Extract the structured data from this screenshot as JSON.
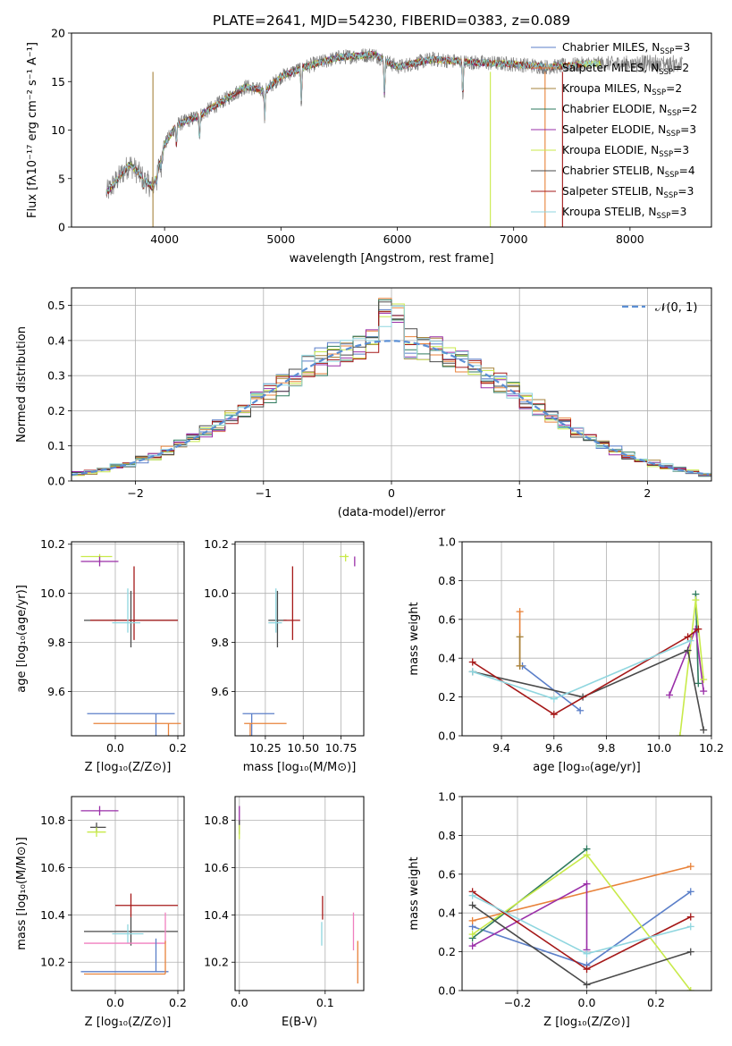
{
  "title": "PLATE=2641, MJD=54230, FIBERID=0383, z=0.089",
  "chart_data": [
    {
      "type": "line",
      "id": "spectrum",
      "xlabel": "wavelength [Angstrom, rest frame]",
      "ylabel": "Flux [fλ10⁻¹⁷ erg cm⁻² s⁻¹ A⁻¹]",
      "xlim": [
        3200,
        8700
      ],
      "ylim": [
        0,
        20
      ],
      "xticks": [
        "4000",
        "5000",
        "6000",
        "7000",
        "8000"
      ],
      "xtick_values": [
        4000,
        5000,
        6000,
        7000,
        8000
      ],
      "yticks": [
        "0",
        "5",
        "10",
        "15",
        "20"
      ],
      "ytick_values": [
        0,
        5,
        10,
        15,
        20
      ],
      "continuum": {
        "x": [
          3500,
          3700,
          3900,
          4000,
          4100,
          4300,
          4500,
          4700,
          4860,
          5000,
          5200,
          5500,
          5800,
          6000,
          6300,
          6600,
          7000,
          7300,
          7600,
          8000,
          8400
        ],
        "y": [
          3.5,
          6.5,
          4.0,
          8.5,
          10.5,
          11.5,
          13.0,
          14.5,
          14.0,
          15.5,
          16.5,
          17.5,
          17.8,
          16.5,
          17.3,
          17.0,
          16.8,
          16.5,
          16.8,
          16.9,
          16.8
        ]
      },
      "legend_position": "upper-right",
      "legend": [
        {
          "label": "Chabrier MILES, N",
          "sub": "SSP",
          "suffix": "=3",
          "color": "#5b7fc9"
        },
        {
          "label": "Salpeter MILES, N",
          "sub": "SSP",
          "suffix": "=2",
          "color": "#e8823a"
        },
        {
          "label": "Kroupa MILES, N",
          "sub": "SSP",
          "suffix": "=2",
          "color": "#a6833c"
        },
        {
          "label": "Chabrier ELODIE, N",
          "sub": "SSP",
          "suffix": "=2",
          "color": "#2e7a5e"
        },
        {
          "label": "Salpeter ELODIE, N",
          "sub": "SSP",
          "suffix": "=3",
          "color": "#9a2fa8"
        },
        {
          "label": "Kroupa ELODIE, N",
          "sub": "SSP",
          "suffix": "=3",
          "color": "#c8ea4a"
        },
        {
          "label": "Chabrier STELIB, N",
          "sub": "SSP",
          "suffix": "=4",
          "color": "#4a4a4a"
        },
        {
          "label": "Salpeter STELIB, N",
          "sub": "SSP",
          "suffix": "=3",
          "color": "#a51818"
        },
        {
          "label": "Kroupa STELIB, N",
          "sub": "SSP",
          "suffix": "=3",
          "color": "#8fd6df"
        }
      ]
    },
    {
      "type": "line",
      "id": "residuals",
      "xlabel": "(data-model)/error",
      "ylabel": "Normed distribution",
      "xlim": [
        -2.5,
        2.5
      ],
      "ylim": [
        0,
        0.55
      ],
      "xticks": [
        "−2",
        "−1",
        "0",
        "1",
        "2"
      ],
      "xtick_values": [
        -2,
        -1,
        0,
        1,
        2
      ],
      "yticks": [
        "0.0",
        "0.1",
        "0.2",
        "0.3",
        "0.4",
        "0.5"
      ],
      "ytick_values": [
        0,
        0.1,
        0.2,
        0.3,
        0.4,
        0.5
      ],
      "grid": true,
      "legend_position": "upper-right",
      "legend": [
        {
          "label": "𝒩(0, 1)",
          "color": "#5b8fd4",
          "dashed": true
        }
      ]
    },
    {
      "type": "scatter",
      "id": "age-vs-Z",
      "xlabel": "Z [log₁₀(Z/Z⊙)]",
      "ylabel": "age  [log₁₀(age/yr)]",
      "xlim": [
        -0.14,
        0.22
      ],
      "ylim": [
        9.42,
        10.21
      ],
      "xticks": [
        "0.0",
        "0.2"
      ],
      "xtick_values": [
        0.0,
        0.2
      ],
      "yticks": [
        "9.6",
        "9.8",
        "10.0",
        "10.2"
      ],
      "ytick_values": [
        9.6,
        9.8,
        10.0,
        10.2
      ],
      "grid": true,
      "points": [
        {
          "x": -0.05,
          "y": 10.15,
          "xerr": [
            0.06,
            0.04
          ],
          "yerr": [
            0.02,
            0.01
          ],
          "color": "#c8ea4a"
        },
        {
          "x": -0.05,
          "y": 10.13,
          "xerr": [
            0.06,
            0.06
          ],
          "yerr": [
            0.02,
            0.02
          ],
          "color": "#9a2fa8"
        },
        {
          "x": 0.05,
          "y": 9.89,
          "xerr": [
            0.15,
            0.15
          ],
          "yerr": [
            0.11,
            0.12
          ],
          "color": "#4a4a4a"
        },
        {
          "x": 0.06,
          "y": 9.89,
          "xerr": [
            0.14,
            0.14
          ],
          "yerr": [
            0.08,
            0.22
          ],
          "color": "#a51818"
        },
        {
          "x": 0.04,
          "y": 9.88,
          "xerr": [
            0.05,
            0.04
          ],
          "yerr": [
            0.04,
            0.14
          ],
          "color": "#8fd6df"
        },
        {
          "x": 0.13,
          "y": 9.51,
          "xerr": [
            0.22,
            0.06
          ],
          "yerr": [
            0.32,
            0.0
          ],
          "color": "#5b7fc9"
        },
        {
          "x": 0.17,
          "y": 9.47,
          "xerr": [
            0.24,
            0.04
          ],
          "yerr": [
            0.36,
            0.0
          ],
          "color": "#e8823a"
        }
      ]
    },
    {
      "type": "scatter",
      "id": "age-vs-mass",
      "xlabel": "mass [log₁₀(M/M⊙)]",
      "ylabel": "",
      "xlim": [
        10.05,
        10.9
      ],
      "ylim": [
        9.42,
        10.21
      ],
      "xticks": [
        "10.25",
        "10.50",
        "10.75"
      ],
      "xtick_values": [
        10.25,
        10.5,
        10.75
      ],
      "yticks": [
        "9.6",
        "9.8",
        "10.0",
        "10.2"
      ],
      "ytick_values": [
        9.6,
        9.8,
        10.0,
        10.2
      ],
      "grid": true,
      "points": [
        {
          "x": 10.78,
          "y": 10.15,
          "xerr": [
            0.04,
            0.02
          ],
          "yerr": [
            0.02,
            0.01
          ],
          "color": "#c8ea4a"
        },
        {
          "x": 10.84,
          "y": 10.13,
          "xerr": [
            0.0,
            0.0
          ],
          "yerr": [
            0.02,
            0.02
          ],
          "color": "#9a2fa8"
        },
        {
          "x": 10.33,
          "y": 9.89,
          "xerr": [
            0.06,
            0.06
          ],
          "yerr": [
            0.11,
            0.12
          ],
          "color": "#4a4a4a"
        },
        {
          "x": 10.43,
          "y": 9.89,
          "xerr": [
            0.06,
            0.05
          ],
          "yerr": [
            0.08,
            0.22
          ],
          "color": "#a51818"
        },
        {
          "x": 10.32,
          "y": 9.88,
          "xerr": [
            0.05,
            0.04
          ],
          "yerr": [
            0.04,
            0.14
          ],
          "color": "#8fd6df"
        },
        {
          "x": 10.16,
          "y": 9.51,
          "xerr": [
            0.06,
            0.15
          ],
          "yerr": [
            0.32,
            0.0
          ],
          "color": "#5b7fc9"
        },
        {
          "x": 10.15,
          "y": 9.47,
          "xerr": [
            0.04,
            0.24
          ],
          "yerr": [
            0.36,
            0.0
          ],
          "color": "#e8823a"
        }
      ]
    },
    {
      "type": "line",
      "id": "massweight-vs-age",
      "xlabel": "age  [log₁₀(age/yr)]",
      "ylabel": "mass weight",
      "xlim": [
        9.25,
        10.2
      ],
      "ylim": [
        0,
        1.0
      ],
      "xticks": [
        "9.4",
        "9.6",
        "9.8",
        "10.0",
        "10.2"
      ],
      "xtick_values": [
        9.4,
        9.6,
        9.8,
        10.0,
        10.2
      ],
      "yticks": [
        "0.0",
        "0.2",
        "0.4",
        "0.6",
        "0.8",
        "1.0"
      ],
      "ytick_values": [
        0,
        0.2,
        0.4,
        0.6,
        0.8,
        1.0
      ],
      "grid": true,
      "series": [
        {
          "color": "#5b7fc9",
          "x": [
            9.48,
            9.7
          ],
          "y": [
            0.36,
            0.13
          ]
        },
        {
          "color": "#e8823a",
          "x": [
            9.47,
            9.47
          ],
          "y": [
            0.36,
            0.64
          ]
        },
        {
          "color": "#a6833c",
          "x": [
            9.47,
            9.47
          ],
          "y": [
            0.51,
            0.36
          ]
        },
        {
          "color": "#2e7a5e",
          "x": [
            10.14,
            10.15
          ],
          "y": [
            0.73,
            0.27
          ]
        },
        {
          "color": "#9a2fa8",
          "x": [
            10.04,
            10.14,
            10.17
          ],
          "y": [
            0.21,
            0.55,
            0.23
          ]
        },
        {
          "color": "#c8ea4a",
          "x": [
            10.08,
            10.14,
            10.17
          ],
          "y": [
            0.0,
            0.7,
            0.29
          ]
        },
        {
          "color": "#4a4a4a",
          "x": [
            9.29,
            9.71,
            10.11,
            10.17
          ],
          "y": [
            0.33,
            0.2,
            0.44,
            0.03
          ]
        },
        {
          "color": "#a51818",
          "x": [
            9.29,
            9.6,
            10.11,
            10.15
          ],
          "y": [
            0.38,
            0.11,
            0.51,
            0.55
          ]
        },
        {
          "color": "#8fd6df",
          "x": [
            9.29,
            9.6,
            10.12
          ],
          "y": [
            0.33,
            0.19,
            0.49
          ]
        }
      ]
    },
    {
      "type": "scatter",
      "id": "mass-vs-Z",
      "xlabel": "Z [log₁₀(Z/Z⊙)]",
      "ylabel": "mass [log₁₀(M/M⊙)]",
      "xlim": [
        -0.14,
        0.22
      ],
      "ylim": [
        10.08,
        10.9
      ],
      "xticks": [
        "0.0",
        "0.2"
      ],
      "xtick_values": [
        0.0,
        0.2
      ],
      "yticks": [
        "10.2",
        "10.4",
        "10.6",
        "10.8"
      ],
      "ytick_values": [
        10.2,
        10.4,
        10.6,
        10.8
      ],
      "grid": true,
      "points": [
        {
          "x": -0.05,
          "y": 10.84,
          "xerr": [
            0.06,
            0.06
          ],
          "yerr": [
            0.02,
            0.02
          ],
          "color": "#9a2fa8"
        },
        {
          "x": -0.06,
          "y": 10.77,
          "xerr": [
            0.02,
            0.03
          ],
          "yerr": [
            0.02,
            0.02
          ],
          "color": "#4a4a4a"
        },
        {
          "x": -0.06,
          "y": 10.75,
          "xerr": [
            0.03,
            0.03
          ],
          "yerr": [
            0.02,
            0.02
          ],
          "color": "#c8ea4a"
        },
        {
          "x": 0.05,
          "y": 10.44,
          "xerr": [
            0.05,
            0.15
          ],
          "yerr": [
            0.05,
            0.05
          ],
          "color": "#a51818"
        },
        {
          "x": 0.05,
          "y": 10.33,
          "xerr": [
            0.15,
            0.15
          ],
          "yerr": [
            0.06,
            0.06
          ],
          "color": "#4a4a4a"
        },
        {
          "x": 0.04,
          "y": 10.32,
          "xerr": [
            0.05,
            0.05
          ],
          "yerr": [
            0.04,
            0.04
          ],
          "color": "#8fd6df"
        },
        {
          "x": 0.16,
          "y": 10.28,
          "xerr": [
            0.26,
            0.0
          ],
          "yerr": [
            0.0,
            0.13
          ],
          "color": "#f07fbf"
        },
        {
          "x": 0.13,
          "y": 10.16,
          "xerr": [
            0.24,
            0.04
          ],
          "yerr": [
            0.0,
            0.14
          ],
          "color": "#5b7fc9"
        },
        {
          "x": 0.16,
          "y": 10.15,
          "xerr": [
            0.26,
            0.0
          ],
          "yerr": [
            0.0,
            0.14
          ],
          "color": "#e8823a"
        }
      ]
    },
    {
      "type": "scatter",
      "id": "mass-vs-EBV",
      "xlabel": "E(B-V)",
      "ylabel": "",
      "xlim": [
        -0.005,
        0.145
      ],
      "ylim": [
        10.08,
        10.9
      ],
      "xticks": [
        "0.0",
        "0.1"
      ],
      "xtick_values": [
        0.0,
        0.1
      ],
      "yticks": [
        "10.2",
        "10.4",
        "10.6",
        "10.8"
      ],
      "ytick_values": [
        10.2,
        10.4,
        10.6,
        10.8
      ],
      "grid": true,
      "points": [
        {
          "x": 0.0,
          "y": 10.82,
          "xerr": [
            0,
            0
          ],
          "yerr": [
            0.04,
            0.04
          ],
          "color": "#9a2fa8"
        },
        {
          "x": 0.0,
          "y": 10.77,
          "xerr": [
            0,
            0
          ],
          "yerr": [
            0.03,
            0.03
          ],
          "color": "#4a4a4a"
        },
        {
          "x": 0.0,
          "y": 10.75,
          "xerr": [
            0,
            0
          ],
          "yerr": [
            0.03,
            0.03
          ],
          "color": "#c8ea4a"
        },
        {
          "x": 0.097,
          "y": 10.43,
          "xerr": [
            0,
            0
          ],
          "yerr": [
            0.05,
            0.05
          ],
          "color": "#a51818"
        },
        {
          "x": 0.096,
          "y": 10.32,
          "xerr": [
            0,
            0
          ],
          "yerr": [
            0.05,
            0.05
          ],
          "color": "#8fd6df"
        },
        {
          "x": 0.133,
          "y": 10.33,
          "xerr": [
            0,
            0
          ],
          "yerr": [
            0.08,
            0.08
          ],
          "color": "#f07fbf"
        },
        {
          "x": 0.138,
          "y": 10.2,
          "xerr": [
            0,
            0
          ],
          "yerr": [
            0.09,
            0.09
          ],
          "color": "#e8823a"
        }
      ]
    },
    {
      "type": "line",
      "id": "massweight-vs-Z",
      "xlabel": "Z [log₁₀(Z/Z⊙)]",
      "ylabel": "mass weight",
      "xlim": [
        -0.36,
        0.36
      ],
      "ylim": [
        0,
        1.0
      ],
      "xticks": [
        "−0.2",
        "0.0",
        "0.2"
      ],
      "xtick_values": [
        -0.2,
        0.0,
        0.2
      ],
      "yticks": [
        "0.0",
        "0.2",
        "0.4",
        "0.6",
        "0.8",
        "1.0"
      ],
      "ytick_values": [
        0,
        0.2,
        0.4,
        0.6,
        0.8,
        1.0
      ],
      "grid": true,
      "series": [
        {
          "color": "#5b7fc9",
          "x": [
            -0.33,
            0.0,
            0.3
          ],
          "y": [
            0.33,
            0.13,
            0.51
          ]
        },
        {
          "color": "#e8823a",
          "x": [
            -0.33,
            0.3
          ],
          "y": [
            0.36,
            0.64
          ]
        },
        {
          "color": "#2e7a5e",
          "x": [
            -0.33,
            0.0
          ],
          "y": [
            0.27,
            0.73
          ]
        },
        {
          "color": "#9a2fa8",
          "x": [
            -0.33,
            0.0,
            0.0
          ],
          "y": [
            0.23,
            0.55,
            0.21
          ]
        },
        {
          "color": "#c8ea4a",
          "x": [
            -0.33,
            0.0,
            0.3
          ],
          "y": [
            0.29,
            0.7,
            0.0
          ]
        },
        {
          "color": "#4a4a4a",
          "x": [
            -0.33,
            0.0,
            0.3
          ],
          "y": [
            0.44,
            0.03,
            0.2
          ]
        },
        {
          "color": "#a51818",
          "x": [
            -0.33,
            0.0,
            0.3
          ],
          "y": [
            0.51,
            0.11,
            0.38
          ]
        },
        {
          "color": "#8fd6df",
          "x": [
            -0.33,
            0.0,
            0.3
          ],
          "y": [
            0.49,
            0.19,
            0.33
          ]
        }
      ]
    }
  ]
}
